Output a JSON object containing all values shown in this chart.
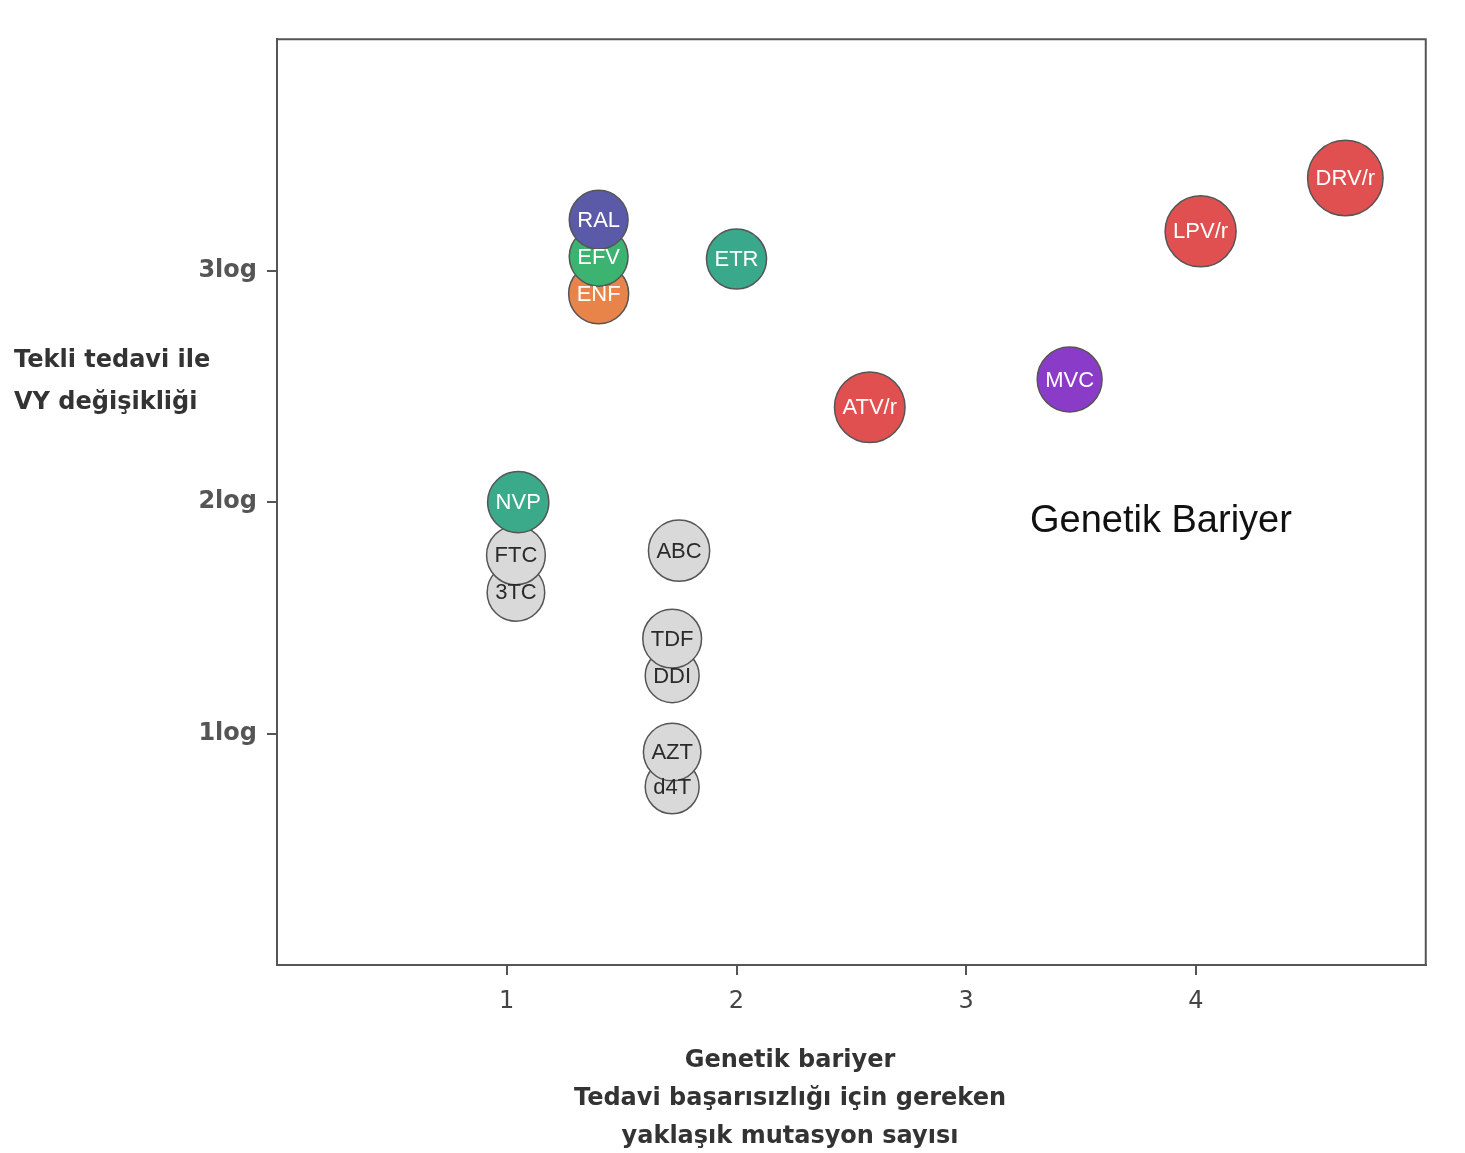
{
  "chart_data": {
    "type": "scatter",
    "xlabel": "Genetik bariyer\nTedavi başarısızlığı için gereken\nyaklaşık mutasyon sayısı",
    "ylabel": "Tekli tedavi ile\nVY değişikliği",
    "xlim": [
      0,
      5
    ],
    "xticks": [
      1,
      2,
      3,
      4
    ],
    "ylim": [
      0,
      4
    ],
    "yticks": [
      {
        "value": 1,
        "label": "1log"
      },
      {
        "value": 2,
        "label": "2log"
      },
      {
        "value": 3,
        "label": "3log"
      }
    ],
    "grid": false,
    "legend": false,
    "annotations": [
      "Genetik Bariyer"
    ],
    "series": [
      {
        "name": "RAL",
        "color": "#5a5aa8",
        "x": [
          1.4
        ],
        "values": [
          3.22
        ]
      },
      {
        "name": "EFV",
        "color": "#3cb371",
        "x": [
          1.4
        ],
        "values": [
          3.06
        ]
      },
      {
        "name": "ENF",
        "color": "#e8844a",
        "x": [
          1.4
        ],
        "values": [
          2.9
        ]
      },
      {
        "name": "ETR",
        "color": "#3aa88a",
        "x": [
          2.0
        ],
        "values": [
          3.05
        ]
      },
      {
        "name": "DRV/r",
        "color": "#e05050",
        "x": [
          4.65
        ],
        "values": [
          3.4
        ]
      },
      {
        "name": "LPV/r",
        "color": "#e05050",
        "x": [
          4.02
        ],
        "values": [
          3.17
        ]
      },
      {
        "name": "MVC",
        "color": "#8a3cc8",
        "x": [
          3.45
        ],
        "values": [
          2.53
        ]
      },
      {
        "name": "ATV/r",
        "color": "#e05050",
        "x": [
          2.58
        ],
        "values": [
          2.41
        ]
      },
      {
        "name": "NVP",
        "color": "#3aaa8a",
        "x": [
          1.05
        ],
        "values": [
          2.0
        ]
      },
      {
        "name": "FTC",
        "color": "#d9d9d9",
        "x": [
          1.04
        ],
        "values": [
          1.77
        ]
      },
      {
        "name": "3TC",
        "color": "#d9d9d9",
        "x": [
          1.04
        ],
        "values": [
          1.61
        ]
      },
      {
        "name": "ABC",
        "color": "#d9d9d9",
        "x": [
          1.75
        ],
        "values": [
          1.79
        ]
      },
      {
        "name": "TDF",
        "color": "#d9d9d9",
        "x": [
          1.72
        ],
        "values": [
          1.41
        ]
      },
      {
        "name": "DDI",
        "color": "#d9d9d9",
        "x": [
          1.72
        ],
        "values": [
          1.25
        ]
      },
      {
        "name": "AZT",
        "color": "#d9d9d9",
        "x": [
          1.72
        ],
        "values": [
          0.92
        ]
      },
      {
        "name": "d4T",
        "color": "#d9d9d9",
        "x": [
          1.72
        ],
        "values": [
          0.77
        ]
      }
    ]
  }
}
